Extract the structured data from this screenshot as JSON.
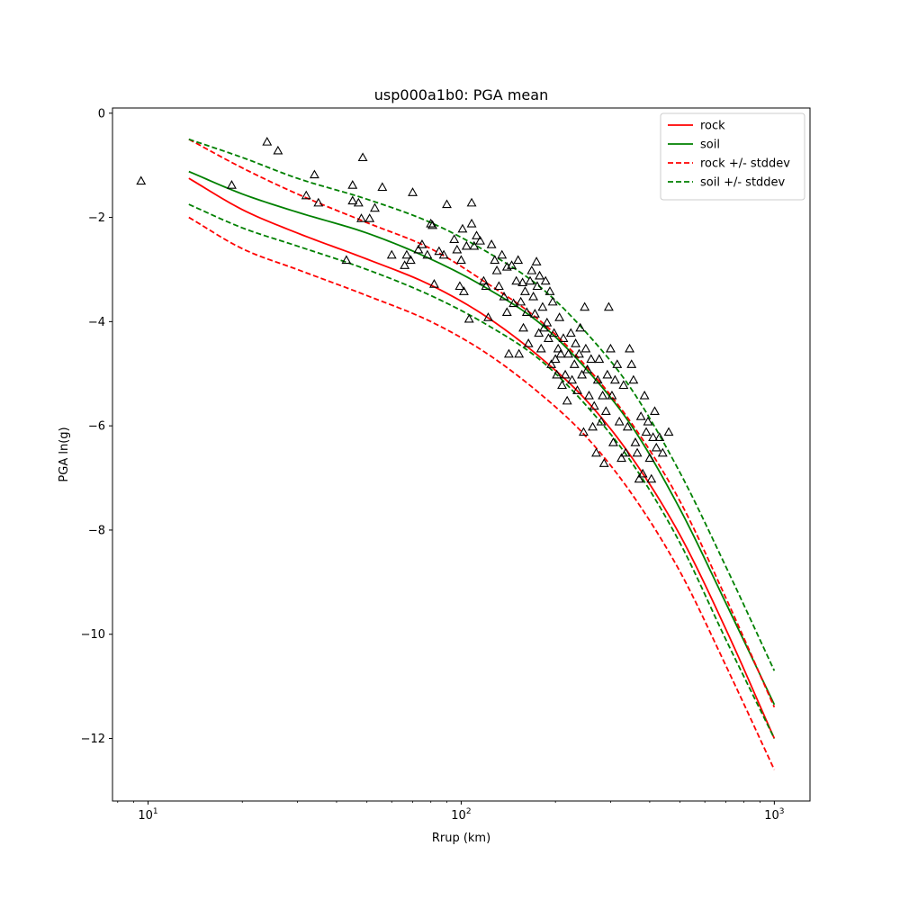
{
  "chart_data": {
    "type": "line",
    "title": "usp000a1b0: PGA mean",
    "xlabel": "Rrup (km)",
    "ylabel": "PGA ln(g)",
    "xscale": "log",
    "xlim": [
      7.7,
      1300
    ],
    "ylim": [
      -13.2,
      0.1
    ],
    "x_ticks": [
      10,
      100,
      1000
    ],
    "x_tick_labels": [
      {
        "base": "10",
        "exp": "1"
      },
      {
        "base": "10",
        "exp": "2"
      },
      {
        "base": "10",
        "exp": "3"
      }
    ],
    "y_ticks": [
      0,
      -2,
      -4,
      -6,
      -8,
      -10,
      -12
    ],
    "y_tick_labels": [
      "0",
      "−2",
      "−4",
      "−6",
      "−8",
      "−10",
      "−12"
    ],
    "grid": false,
    "legend_position": "top-right",
    "x": [
      13.5,
      20,
      30,
      50,
      80,
      120,
      180,
      250,
      350,
      500,
      700,
      1000
    ],
    "series": [
      {
        "name": "rock",
        "color": "#ff0000",
        "dash": "solid",
        "values": [
          -1.25,
          -1.85,
          -2.3,
          -2.8,
          -3.3,
          -3.9,
          -4.7,
          -5.5,
          -6.6,
          -8.1,
          -9.9,
          -12.0
        ]
      },
      {
        "name": "soil",
        "color": "#008000",
        "dash": "solid",
        "values": [
          -1.12,
          -1.55,
          -1.9,
          -2.3,
          -2.8,
          -3.35,
          -4.05,
          -4.9,
          -6.0,
          -7.6,
          -9.4,
          -11.35
        ]
      },
      {
        "name": "rock +/- stddev",
        "color": "#ff0000",
        "dash": "dashed",
        "values": [
          -2.0,
          -2.6,
          -3.0,
          -3.5,
          -4.0,
          -4.6,
          -5.4,
          -6.2,
          -7.3,
          -8.8,
          -10.6,
          -12.6
        ]
      },
      {
        "name": "rock +/- stddev",
        "color": "#ff0000",
        "dash": "dashed",
        "legend": false,
        "values": [
          -0.5,
          -1.05,
          -1.55,
          -2.1,
          -2.6,
          -3.25,
          -4.0,
          -4.85,
          -5.95,
          -7.45,
          -9.3,
          -11.4
        ]
      },
      {
        "name": "soil +/- stddev",
        "color": "#008000",
        "dash": "dashed",
        "values": [
          -1.75,
          -2.2,
          -2.55,
          -3.0,
          -3.5,
          -4.05,
          -4.75,
          -5.6,
          -6.7,
          -8.25,
          -10.1,
          -12.0
        ]
      },
      {
        "name": "soil +/- stddev",
        "color": "#008000",
        "dash": "dashed",
        "legend": false,
        "values": [
          -0.5,
          -0.85,
          -1.25,
          -1.65,
          -2.1,
          -2.65,
          -3.35,
          -4.2,
          -5.3,
          -6.9,
          -8.7,
          -10.7
        ]
      }
    ],
    "points": {
      "marker": "triangle-open",
      "color": "#000000",
      "data": [
        [
          9.5,
          -1.3
        ],
        [
          18.5,
          -1.38
        ],
        [
          24,
          -0.55
        ],
        [
          26,
          -0.72
        ],
        [
          32,
          -1.58
        ],
        [
          34,
          -1.18
        ],
        [
          35,
          -1.72
        ],
        [
          43,
          -2.82
        ],
        [
          45,
          -1.38
        ],
        [
          45,
          -1.68
        ],
        [
          47,
          -1.72
        ],
        [
          48,
          -2.02
        ],
        [
          48.5,
          -0.85
        ],
        [
          51,
          -2.02
        ],
        [
          53,
          -1.82
        ],
        [
          56,
          -1.42
        ],
        [
          60,
          -2.72
        ],
        [
          66,
          -2.92
        ],
        [
          67,
          -2.72
        ],
        [
          69,
          -2.82
        ],
        [
          70,
          -1.52
        ],
        [
          73,
          -2.62
        ],
        [
          75,
          -2.52
        ],
        [
          78,
          -2.72
        ],
        [
          80,
          -2.12
        ],
        [
          81,
          -2.15
        ],
        [
          82,
          -3.28
        ],
        [
          85,
          -2.65
        ],
        [
          88,
          -2.72
        ],
        [
          90,
          -1.75
        ],
        [
          95,
          -2.42
        ],
        [
          97,
          -2.62
        ],
        [
          99,
          -3.32
        ],
        [
          100,
          -2.82
        ],
        [
          101,
          -2.22
        ],
        [
          102,
          -3.42
        ],
        [
          104,
          -2.55
        ],
        [
          106,
          -3.95
        ],
        [
          108,
          -2.12
        ],
        [
          108,
          -1.72
        ],
        [
          110,
          -2.55
        ],
        [
          112,
          -2.35
        ],
        [
          115,
          -2.45
        ],
        [
          118,
          -3.22
        ],
        [
          120,
          -3.32
        ],
        [
          122,
          -3.92
        ],
        [
          125,
          -2.52
        ],
        [
          128,
          -2.82
        ],
        [
          130,
          -3.02
        ],
        [
          132,
          -3.32
        ],
        [
          135,
          -2.72
        ],
        [
          137,
          -3.52
        ],
        [
          140,
          -2.95
        ],
        [
          140,
          -3.82
        ],
        [
          142,
          -4.62
        ],
        [
          145,
          -2.92
        ],
        [
          147,
          -3.65
        ],
        [
          150,
          -3.22
        ],
        [
          152,
          -2.82
        ],
        [
          153,
          -4.62
        ],
        [
          155,
          -3.62
        ],
        [
          157,
          -3.25
        ],
        [
          158,
          -4.12
        ],
        [
          160,
          -3.42
        ],
        [
          162,
          -3.82
        ],
        [
          164,
          -4.42
        ],
        [
          166,
          -3.22
        ],
        [
          168,
          -3.02
        ],
        [
          170,
          -3.52
        ],
        [
          172,
          -3.85
        ],
        [
          174,
          -2.85
        ],
        [
          175,
          -3.32
        ],
        [
          177,
          -4.22
        ],
        [
          178,
          -3.12
        ],
        [
          180,
          -4.52
        ],
        [
          182,
          -3.72
        ],
        [
          184,
          -4.12
        ],
        [
          186,
          -3.22
        ],
        [
          188,
          -4.02
        ],
        [
          190,
          -4.32
        ],
        [
          192,
          -3.42
        ],
        [
          194,
          -4.82
        ],
        [
          196,
          -3.62
        ],
        [
          198,
          -4.22
        ],
        [
          200,
          -4.72
        ],
        [
          202,
          -5.02
        ],
        [
          204,
          -4.52
        ],
        [
          206,
          -3.92
        ],
        [
          208,
          -4.62
        ],
        [
          210,
          -5.22
        ],
        [
          212,
          -4.32
        ],
        [
          215,
          -5.02
        ],
        [
          218,
          -5.52
        ],
        [
          220,
          -4.62
        ],
        [
          224,
          -4.22
        ],
        [
          226,
          -5.12
        ],
        [
          230,
          -4.82
        ],
        [
          232,
          -4.42
        ],
        [
          235,
          -5.32
        ],
        [
          238,
          -4.62
        ],
        [
          240,
          -4.12
        ],
        [
          243,
          -5.02
        ],
        [
          246,
          -6.12
        ],
        [
          248,
          -3.72
        ],
        [
          250,
          -4.52
        ],
        [
          253,
          -4.92
        ],
        [
          256,
          -5.42
        ],
        [
          260,
          -4.72
        ],
        [
          263,
          -6.02
        ],
        [
          266,
          -5.62
        ],
        [
          270,
          -6.52
        ],
        [
          273,
          -5.12
        ],
        [
          276,
          -4.72
        ],
        [
          280,
          -5.92
        ],
        [
          283,
          -5.42
        ],
        [
          286,
          -6.72
        ],
        [
          290,
          -5.72
        ],
        [
          293,
          -5.02
        ],
        [
          296,
          -3.72
        ],
        [
          300,
          -4.52
        ],
        [
          303,
          -5.42
        ],
        [
          306,
          -6.32
        ],
        [
          310,
          -5.12
        ],
        [
          315,
          -4.82
        ],
        [
          320,
          -5.92
        ],
        [
          325,
          -6.62
        ],
        [
          330,
          -5.22
        ],
        [
          335,
          -6.52
        ],
        [
          340,
          -6.02
        ],
        [
          345,
          -4.52
        ],
        [
          350,
          -4.82
        ],
        [
          355,
          -5.12
        ],
        [
          360,
          -6.32
        ],
        [
          365,
          -6.52
        ],
        [
          370,
          -7.02
        ],
        [
          375,
          -5.82
        ],
        [
          380,
          -6.92
        ],
        [
          385,
          -5.42
        ],
        [
          390,
          -6.12
        ],
        [
          395,
          -5.92
        ],
        [
          400,
          -6.62
        ],
        [
          405,
          -7.02
        ],
        [
          410,
          -6.22
        ],
        [
          415,
          -5.72
        ],
        [
          420,
          -6.42
        ],
        [
          430,
          -6.22
        ],
        [
          440,
          -6.52
        ],
        [
          460,
          -6.12
        ]
      ]
    }
  }
}
